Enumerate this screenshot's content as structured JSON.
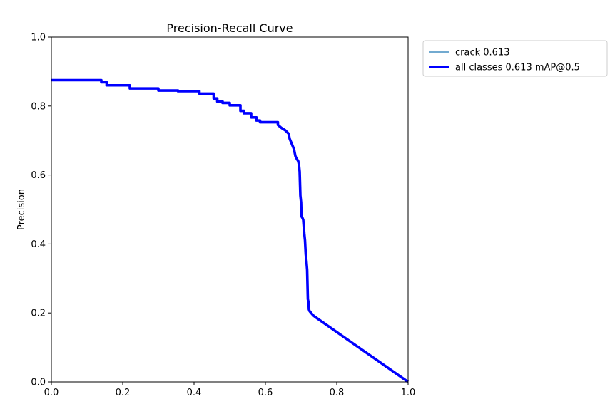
{
  "chart_data": {
    "type": "line",
    "title": "Precision-Recall Curve",
    "xlabel": "",
    "ylabel": "Precision",
    "xlim": [
      0,
      1
    ],
    "ylim": [
      0,
      1
    ],
    "xticks": [
      "0.0",
      "0.2",
      "0.4",
      "0.6",
      "0.8",
      "1.0"
    ],
    "yticks": [
      "0.0",
      "0.2",
      "0.4",
      "0.6",
      "0.8",
      "1.0"
    ],
    "grid": false,
    "legend_position": "outside-top-right",
    "series": [
      {
        "name": "crack 0.613",
        "color": "#1f77b4",
        "line": "thin",
        "x": [
          0,
          0.14,
          0.14,
          0.155,
          0.155,
          0.22,
          0.22,
          0.3,
          0.3,
          0.355,
          0.355,
          0.415,
          0.415,
          0.455,
          0.455,
          0.465,
          0.465,
          0.48,
          0.48,
          0.5,
          0.5,
          0.53,
          0.53,
          0.54,
          0.54,
          0.56,
          0.56,
          0.575,
          0.575,
          0.585,
          0.585,
          0.635,
          0.635,
          0.643,
          0.65,
          0.655,
          0.66,
          0.665,
          0.668,
          0.672,
          0.676,
          0.68,
          0.684,
          0.686,
          0.689,
          0.692,
          0.694,
          0.696,
          0.698,
          0.7,
          0.701,
          0.704,
          0.706,
          0.709,
          0.711,
          0.713,
          0.715,
          0.717,
          0.719,
          0.721,
          0.722,
          0.724,
          0.728,
          0.734,
          0.74,
          1.0
        ],
        "y": [
          0.875,
          0.875,
          0.869,
          0.869,
          0.86,
          0.86,
          0.851,
          0.851,
          0.845,
          0.845,
          0.843,
          0.843,
          0.836,
          0.836,
          0.822,
          0.822,
          0.813,
          0.813,
          0.809,
          0.809,
          0.802,
          0.802,
          0.786,
          0.786,
          0.779,
          0.779,
          0.767,
          0.767,
          0.758,
          0.758,
          0.753,
          0.753,
          0.745,
          0.738,
          0.733,
          0.73,
          0.725,
          0.72,
          0.705,
          0.695,
          0.685,
          0.675,
          0.655,
          0.65,
          0.645,
          0.64,
          0.63,
          0.61,
          0.54,
          0.52,
          0.48,
          0.475,
          0.47,
          0.43,
          0.41,
          0.37,
          0.35,
          0.325,
          0.24,
          0.23,
          0.21,
          0.205,
          0.2,
          0.193,
          0.188,
          0.0
        ]
      },
      {
        "name": "all classes 0.613 mAP@0.5",
        "color": "#0000ff",
        "line": "thick",
        "x": [
          0,
          0.14,
          0.14,
          0.155,
          0.155,
          0.22,
          0.22,
          0.3,
          0.3,
          0.355,
          0.355,
          0.415,
          0.415,
          0.455,
          0.455,
          0.465,
          0.465,
          0.48,
          0.48,
          0.5,
          0.5,
          0.53,
          0.53,
          0.54,
          0.54,
          0.56,
          0.56,
          0.575,
          0.575,
          0.585,
          0.585,
          0.635,
          0.635,
          0.643,
          0.65,
          0.655,
          0.66,
          0.665,
          0.668,
          0.672,
          0.676,
          0.68,
          0.684,
          0.686,
          0.689,
          0.692,
          0.694,
          0.696,
          0.698,
          0.7,
          0.701,
          0.704,
          0.706,
          0.709,
          0.711,
          0.713,
          0.715,
          0.717,
          0.719,
          0.721,
          0.722,
          0.724,
          0.728,
          0.734,
          0.74,
          1.0
        ],
        "y": [
          0.875,
          0.875,
          0.869,
          0.869,
          0.86,
          0.86,
          0.851,
          0.851,
          0.845,
          0.845,
          0.843,
          0.843,
          0.836,
          0.836,
          0.822,
          0.822,
          0.813,
          0.813,
          0.809,
          0.809,
          0.802,
          0.802,
          0.786,
          0.786,
          0.779,
          0.779,
          0.767,
          0.767,
          0.758,
          0.758,
          0.753,
          0.753,
          0.745,
          0.738,
          0.733,
          0.73,
          0.725,
          0.72,
          0.705,
          0.695,
          0.685,
          0.675,
          0.655,
          0.65,
          0.645,
          0.64,
          0.63,
          0.61,
          0.54,
          0.52,
          0.48,
          0.475,
          0.47,
          0.43,
          0.41,
          0.37,
          0.35,
          0.325,
          0.24,
          0.23,
          0.21,
          0.205,
          0.2,
          0.193,
          0.188,
          0.0
        ]
      }
    ]
  }
}
